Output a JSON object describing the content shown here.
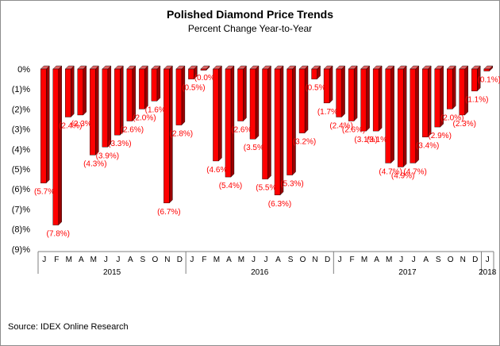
{
  "chart_data": {
    "type": "bar",
    "title": "Polished Diamond Price Trends",
    "subtitle": "Percent Change Year-to-Year",
    "source": "Source: IDEX Online Research",
    "xlabel": "",
    "ylabel": "",
    "ylim": [
      -9,
      0
    ],
    "yticks": [
      {
        "value": 0,
        "label": "0%"
      },
      {
        "value": -1,
        "label": "(1)%"
      },
      {
        "value": -2,
        "label": "(2)%"
      },
      {
        "value": -3,
        "label": "(3)%"
      },
      {
        "value": -4,
        "label": "(4)%"
      },
      {
        "value": -5,
        "label": "(5)%"
      },
      {
        "value": -6,
        "label": "(6)%"
      },
      {
        "value": -7,
        "label": "(7)%"
      },
      {
        "value": -8,
        "label": "(8)%"
      },
      {
        "value": -9,
        "label": "(9)%"
      }
    ],
    "categories": [
      "J",
      "F",
      "M",
      "A",
      "M",
      "J",
      "J",
      "A",
      "S",
      "O",
      "N",
      "D",
      "J",
      "F",
      "M",
      "A",
      "M",
      "J",
      "J",
      "A",
      "S",
      "O",
      "N",
      "D",
      "J",
      "F",
      "M",
      "A",
      "M",
      "J",
      "J",
      "A",
      "S",
      "O",
      "N",
      "D",
      "J"
    ],
    "values": [
      -5.7,
      -7.8,
      -2.4,
      -2.3,
      -4.3,
      -3.9,
      -3.3,
      -2.6,
      -2.0,
      -1.6,
      -6.7,
      -2.8,
      -0.5,
      -0.0,
      -4.6,
      -5.4,
      -2.6,
      -3.5,
      -5.5,
      -6.3,
      -5.3,
      -3.2,
      -0.5,
      -1.7,
      -2.4,
      -2.6,
      -3.1,
      -3.1,
      -4.7,
      -4.9,
      -4.7,
      -3.4,
      -2.9,
      -2.0,
      -2.3,
      -1.1,
      -0.1
    ],
    "data_labels": [
      "(5.7%)",
      "(7.8%)",
      "(2.4%)",
      "(2.3%)",
      "(4.3%)",
      "(3.9%)",
      "(3.3%)",
      "(2.6%)",
      "(2.0%)",
      "(1.6%)",
      "(6.7%)",
      "(2.8%)",
      "(0.5%)",
      "(0.0%)",
      "(4.6%)",
      "(5.4%)",
      "(2.6%)",
      "(3.5%)",
      "(5.5%)",
      "(6.3%)",
      "(5.3%)",
      "(3.2%)",
      "(0.5%)",
      "(1.7%)",
      "(2.4%)",
      "(2.6%)",
      "(3.1%)",
      "(3.1%)",
      "(4.7%)",
      "(4.9%)",
      "(4.7%)",
      "(3.4%)",
      "(2.9%)",
      "(2.0%)",
      "(2.3%)",
      "(1.1%)",
      "(0.1%)"
    ],
    "year_groups": [
      {
        "label": "2015",
        "start": 0,
        "count": 12
      },
      {
        "label": "2016",
        "start": 12,
        "count": 12
      },
      {
        "label": "2017",
        "start": 24,
        "count": 12
      },
      {
        "label": "2018",
        "start": 36,
        "count": 1
      }
    ],
    "colors": {
      "bar_front": "#ff0000",
      "bar_side": "#990000",
      "bar_top": "#e06666",
      "label": "#ff0000",
      "axis": "#7f7f7f"
    },
    "grid": false,
    "legend": "none"
  }
}
